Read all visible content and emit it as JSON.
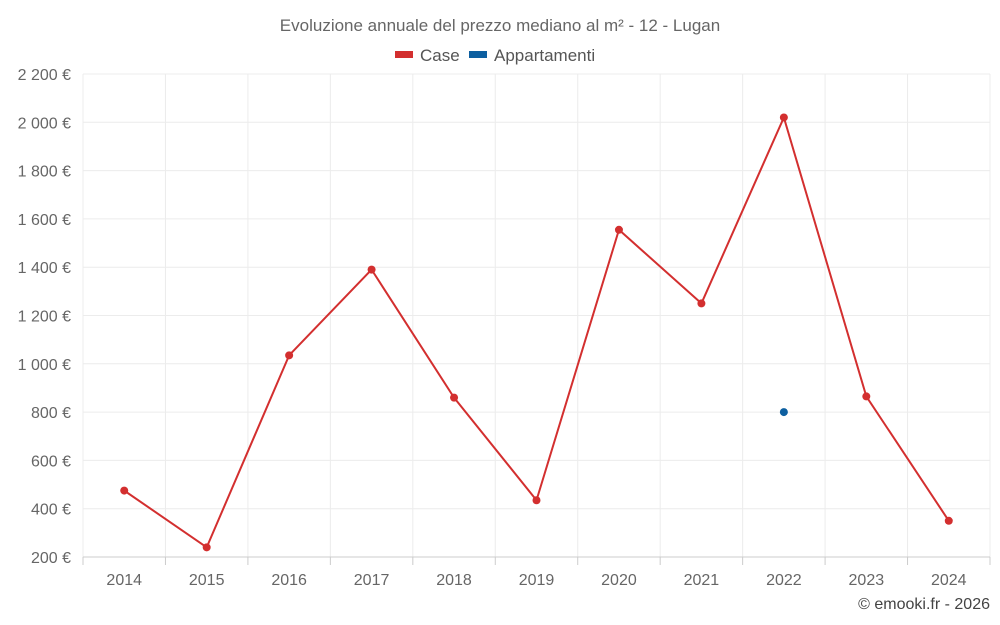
{
  "chart_data": {
    "type": "line",
    "title": "Evoluzione annuale del prezzo mediano al m² - 12 - Lugan",
    "x": [
      "2014",
      "2015",
      "2016",
      "2017",
      "2018",
      "2019",
      "2020",
      "2021",
      "2022",
      "2023",
      "2024"
    ],
    "series": [
      {
        "name": "Case",
        "color": "#d32f2f",
        "values": [
          475,
          240,
          1035,
          1390,
          860,
          435,
          1555,
          1250,
          2020,
          865,
          350
        ]
      },
      {
        "name": "Appartamenti",
        "color": "#0d5fa0",
        "values": [
          null,
          null,
          null,
          null,
          null,
          null,
          null,
          null,
          800,
          null,
          null
        ]
      }
    ],
    "y_ticks": [
      "200 €",
      "400 €",
      "600 €",
      "800 €",
      "1 000 €",
      "1 200 €",
      "1 400 €",
      "1 600 €",
      "1 800 €",
      "2 000 €",
      "2 200 €"
    ],
    "ylim": [
      200,
      2200
    ],
    "grid": true,
    "legend_position": "top-center"
  },
  "credit": "© emooki.fr - 2026"
}
